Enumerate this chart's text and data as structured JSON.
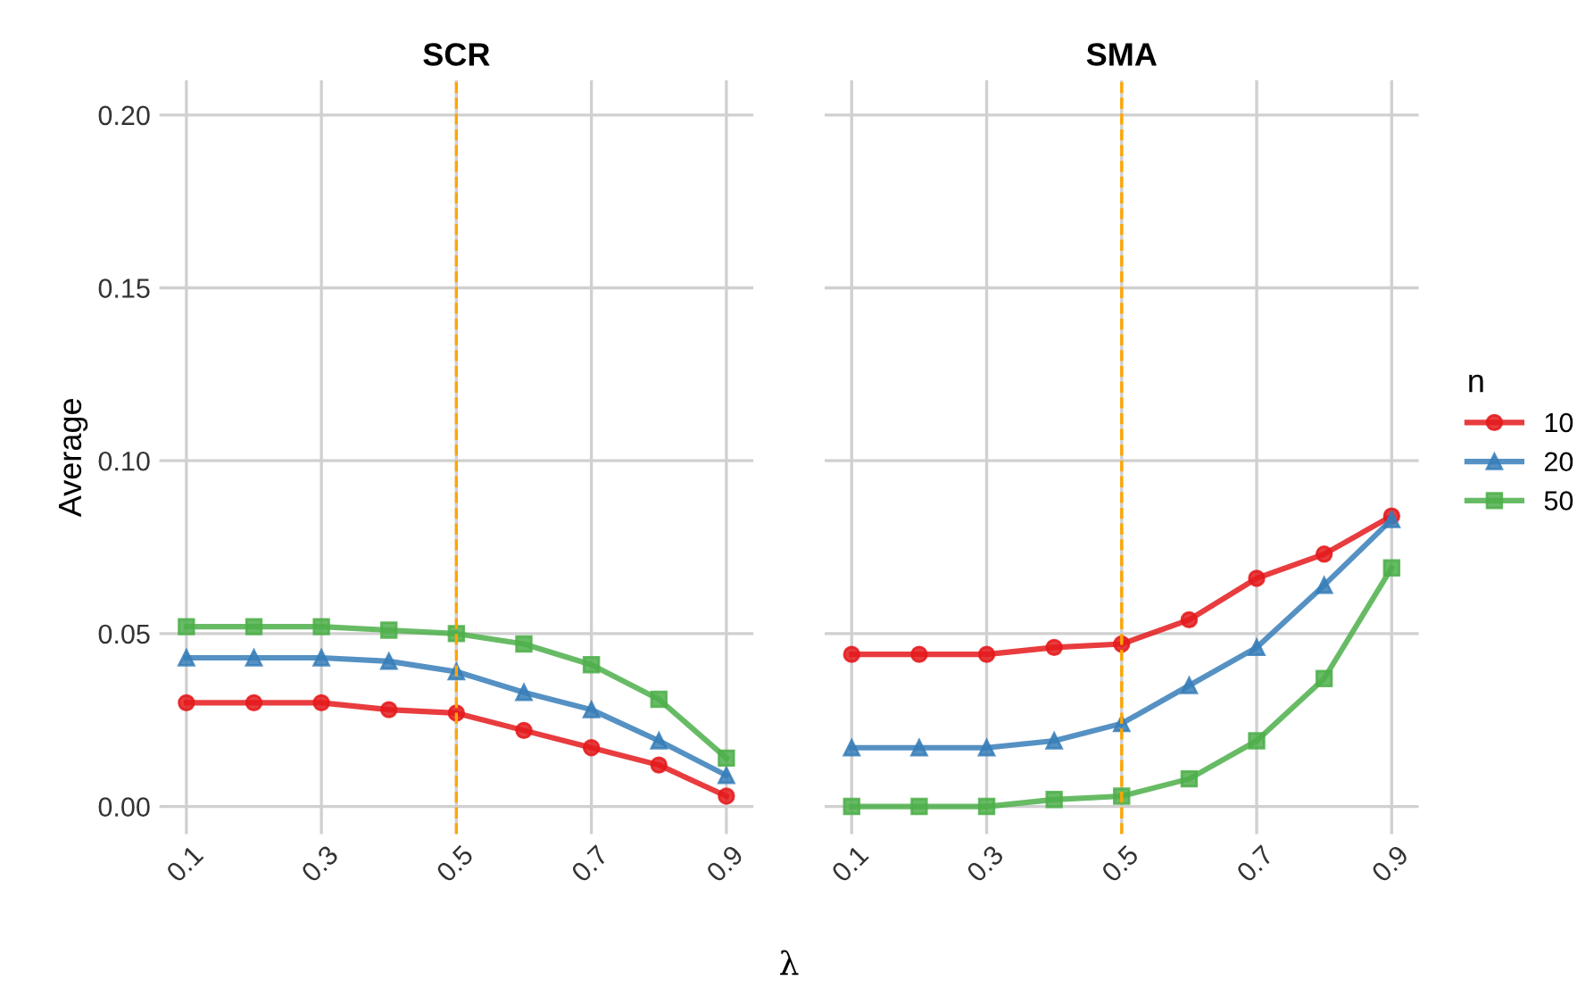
{
  "chart_data": [
    {
      "type": "line",
      "title": "SCR",
      "xlabel": "λ",
      "ylabel": "Average",
      "x": [
        0.1,
        0.2,
        0.3,
        0.4,
        0.5,
        0.6,
        0.7,
        0.8,
        0.9
      ],
      "xlim": [
        0.06,
        0.94
      ],
      "ylim": [
        -0.008,
        0.21
      ],
      "xticks": [
        0.1,
        0.3,
        0.5,
        0.7,
        0.9
      ],
      "yticks": [
        {
          "value": 0,
          "label": "0.00"
        },
        {
          "value": 0.05,
          "label": "0.05"
        },
        {
          "value": 0.1,
          "label": "0.10"
        },
        {
          "value": 0.15,
          "label": "0.15"
        },
        {
          "value": 0.2,
          "label": "0.20"
        }
      ],
      "grid": true,
      "legend": "right",
      "legend_title": "n",
      "line_style": "solid",
      "ref_lines": [
        {
          "axis": "x",
          "value": 0.5,
          "color": "#ffa500",
          "line_style": "dashed"
        }
      ],
      "series": [
        {
          "name": "10",
          "color": "#e41a1c",
          "marker": "circle",
          "values": [
            0.03,
            0.03,
            0.03,
            0.028,
            0.027,
            0.022,
            0.017,
            0.012,
            0.003
          ]
        },
        {
          "name": "20",
          "color": "#377eb8",
          "marker": "triangle",
          "values": [
            0.043,
            0.043,
            0.043,
            0.042,
            0.039,
            0.033,
            0.028,
            0.019,
            0.009
          ]
        },
        {
          "name": "50",
          "color": "#4daf4a",
          "marker": "square",
          "values": [
            0.052,
            0.052,
            0.052,
            0.051,
            0.05,
            0.047,
            0.041,
            0.031,
            0.014
          ]
        }
      ]
    },
    {
      "type": "line",
      "title": "SMA",
      "x": [
        0.1,
        0.2,
        0.3,
        0.4,
        0.5,
        0.6,
        0.7,
        0.8,
        0.9
      ],
      "xlim": [
        0.06,
        0.94
      ],
      "ylim": [
        -0.008,
        0.21
      ],
      "xticks": [
        0.1,
        0.3,
        0.5,
        0.7,
        0.9
      ],
      "yticks": [
        {
          "value": 0,
          "label": null
        },
        {
          "value": 0.05,
          "label": null
        },
        {
          "value": 0.1,
          "label": null
        },
        {
          "value": 0.15,
          "label": null
        },
        {
          "value": 0.2,
          "label": null
        }
      ],
      "tick_labels": "x",
      "grid": true,
      "line_style": "solid",
      "ref_lines": [
        {
          "axis": "x",
          "value": 0.5,
          "color": "#ffa500",
          "line_style": "dashed"
        }
      ],
      "series": [
        {
          "name": "10",
          "color": "#e41a1c",
          "marker": "circle",
          "values": [
            0.044,
            0.044,
            0.044,
            0.046,
            0.047,
            0.054,
            0.066,
            0.073,
            0.084
          ]
        },
        {
          "name": "20",
          "color": "#377eb8",
          "marker": "triangle",
          "values": [
            0.017,
            0.017,
            0.017,
            0.019,
            0.024,
            0.035,
            0.046,
            0.064,
            0.083
          ]
        },
        {
          "name": "50",
          "color": "#4daf4a",
          "marker": "square",
          "values": [
            0.0,
            0.0,
            0.0,
            0.002,
            0.003,
            0.008,
            0.019,
            0.037,
            0.069
          ]
        }
      ]
    }
  ]
}
